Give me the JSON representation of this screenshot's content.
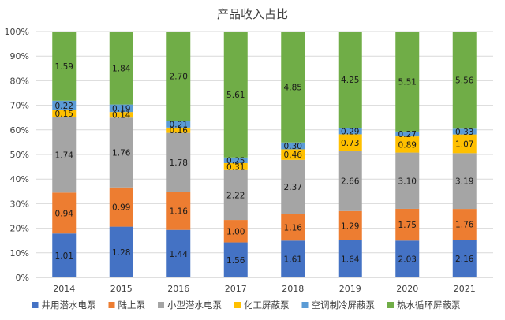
{
  "chart_data": {
    "type": "bar",
    "stacked": "percent",
    "title": "产品收入占比",
    "categories": [
      "2014",
      "2015",
      "2016",
      "2017",
      "2018",
      "2019",
      "2020",
      "2021"
    ],
    "y_ticks": [
      "0%",
      "10%",
      "20%",
      "30%",
      "40%",
      "50%",
      "60%",
      "70%",
      "80%",
      "90%",
      "100%"
    ],
    "ylim": [
      0,
      100
    ],
    "grid": true,
    "legend_position": "bottom",
    "series": [
      {
        "name": "井用潜水电泵",
        "color": "#4472c4",
        "values": [
          1.01,
          1.28,
          1.44,
          1.56,
          1.61,
          1.64,
          2.03,
          2.16
        ]
      },
      {
        "name": "陆上泵",
        "color": "#ed7d31",
        "values": [
          0.94,
          0.99,
          1.16,
          1.0,
          1.16,
          1.29,
          1.75,
          1.76
        ]
      },
      {
        "name": "小型潜水电泵",
        "color": "#a5a5a5",
        "values": [
          1.74,
          1.76,
          1.78,
          2.22,
          2.37,
          2.66,
          3.1,
          3.19
        ]
      },
      {
        "name": "化工屏蔽泵",
        "color": "#ffc000",
        "values": [
          0.15,
          0.14,
          0.16,
          0.31,
          0.46,
          0.73,
          0.89,
          1.07
        ]
      },
      {
        "name": "空调制冷屏蔽泵",
        "color": "#5b9bd5",
        "values": [
          0.22,
          0.19,
          0.21,
          0.25,
          0.3,
          0.29,
          0.27,
          0.33
        ]
      },
      {
        "name": "热水循环屏蔽泵",
        "color": "#70ad47",
        "values": [
          1.59,
          1.84,
          2.7,
          5.61,
          4.85,
          4.25,
          5.51,
          5.56
        ]
      }
    ]
  }
}
